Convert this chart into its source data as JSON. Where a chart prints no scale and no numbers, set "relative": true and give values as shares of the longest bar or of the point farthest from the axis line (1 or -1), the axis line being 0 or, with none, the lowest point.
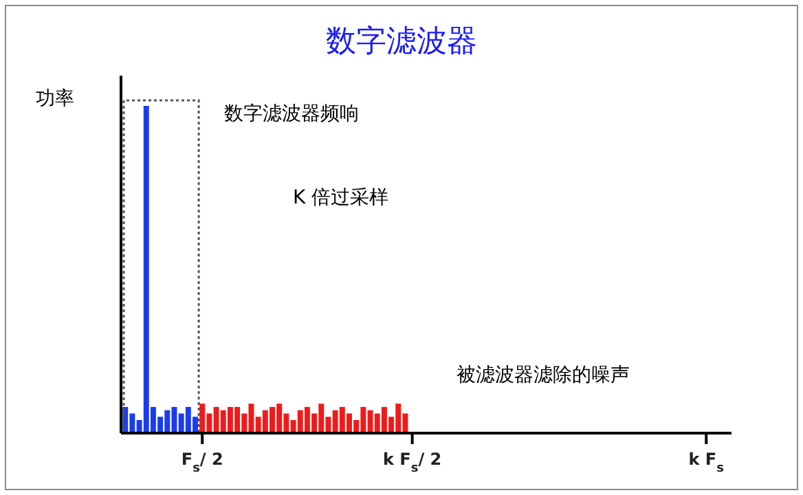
{
  "chart_data": {
    "type": "bar",
    "title": "数字滤波器",
    "ylabel": "功率",
    "relative": true,
    "categories": [
      null,
      null,
      null,
      null,
      null,
      null,
      null,
      null,
      null,
      null,
      null,
      "F$_{s}$/ 2",
      null,
      null,
      null,
      null,
      null,
      null,
      null,
      null,
      null,
      null,
      null,
      null,
      null,
      null,
      null,
      null,
      null,
      null,
      null,
      null,
      null,
      null,
      null,
      null,
      null,
      null,
      null,
      null,
      null,
      "k F$_{s}$/ 2",
      null,
      null,
      null,
      null,
      null,
      null,
      null,
      null,
      null,
      null,
      null,
      null,
      null,
      null,
      null,
      null,
      null,
      null,
      null,
      null,
      null,
      null,
      null,
      null,
      null,
      null,
      null,
      null,
      null,
      null,
      null,
      null,
      null,
      null,
      null,
      null,
      null,
      null,
      null,
      null,
      null,
      "k F$_{s}$",
      null,
      null,
      null
    ],
    "series": [
      {
        "color": "#1a3cf0",
        "values": [
          0.08,
          0.06,
          0.04,
          1,
          0.08,
          0.05,
          0.07,
          0.08,
          0.06,
          0.08,
          0.05,
          null,
          null,
          null,
          null,
          null,
          null,
          null,
          null,
          null,
          null,
          null,
          null,
          null,
          null,
          null,
          null,
          null,
          null,
          null,
          null,
          null,
          null,
          null,
          null,
          null,
          null,
          null,
          null,
          null,
          null,
          null,
          null,
          null,
          null,
          null,
          null,
          null,
          null,
          null,
          null,
          null,
          null,
          null,
          null,
          null,
          null,
          null,
          null,
          null,
          null,
          null,
          null,
          null,
          null,
          null,
          null,
          null,
          null,
          null,
          null,
          null,
          null,
          null,
          null,
          null,
          null,
          null,
          null,
          null,
          null,
          null,
          null,
          null,
          null,
          null,
          null
        ]
      },
      {
        "color": "#f01a1a",
        "values": [
          null,
          null,
          null,
          null,
          null,
          null,
          null,
          null,
          null,
          null,
          null,
          0.09,
          0.06,
          0.08,
          0.07,
          0.08,
          0.08,
          0.06,
          0.09,
          0.05,
          0.07,
          0.08,
          0.09,
          0.06,
          0.04,
          0.07,
          0.08,
          0.06,
          0.09,
          0.05,
          0.07,
          0.08,
          0.06,
          0.04,
          0.08,
          0.07,
          0.06,
          0.08,
          0.05,
          0.09,
          0.06,
          null,
          null,
          null,
          null,
          null,
          null,
          null,
          null,
          null,
          null,
          null,
          null,
          null,
          null,
          null,
          null,
          null,
          null,
          null,
          null,
          null,
          null,
          null,
          null,
          null,
          null,
          null,
          null,
          null,
          null,
          null,
          null,
          null,
          null,
          null,
          null,
          null,
          null,
          null,
          null,
          null,
          null,
          null,
          null,
          null,
          null
        ]
      }
    ],
    "annotations": [
      "数字滤波器频响",
      "K 倍过采样",
      "被滤波器滤除的噪声"
    ]
  }
}
